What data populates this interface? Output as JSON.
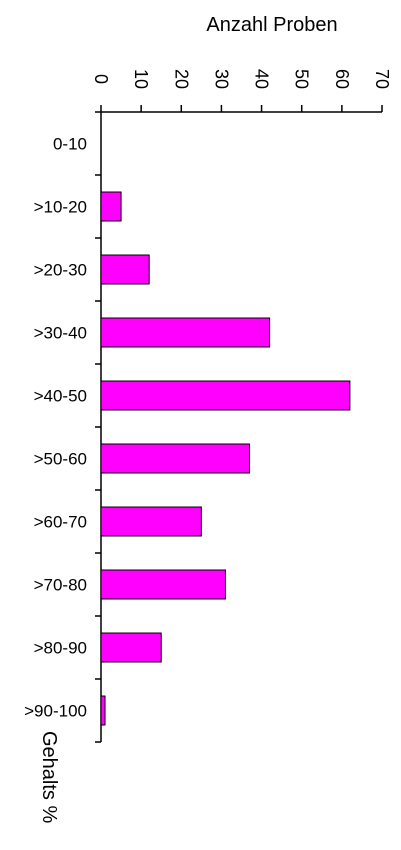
{
  "chart_data": {
    "type": "bar",
    "orientation": "horizontal",
    "x_axis_position": "top",
    "categories": [
      "0-10",
      ">10-20",
      ">20-30",
      ">30-40",
      ">40-50",
      ">50-60",
      ">60-70",
      ">70-80",
      ">80-90",
      ">90-100"
    ],
    "values": [
      0,
      5,
      12,
      42,
      62,
      37,
      25,
      31,
      15,
      1
    ],
    "xlabel": "Anzahl Proben",
    "ylabel": "Gehalts %",
    "xlim": [
      0,
      70
    ],
    "xticks": [
      0,
      10,
      20,
      30,
      40,
      50,
      60,
      70
    ],
    "bar_color": "#ff00ff",
    "bar_border_color": "#000000",
    "grid": false,
    "legend": "none"
  }
}
